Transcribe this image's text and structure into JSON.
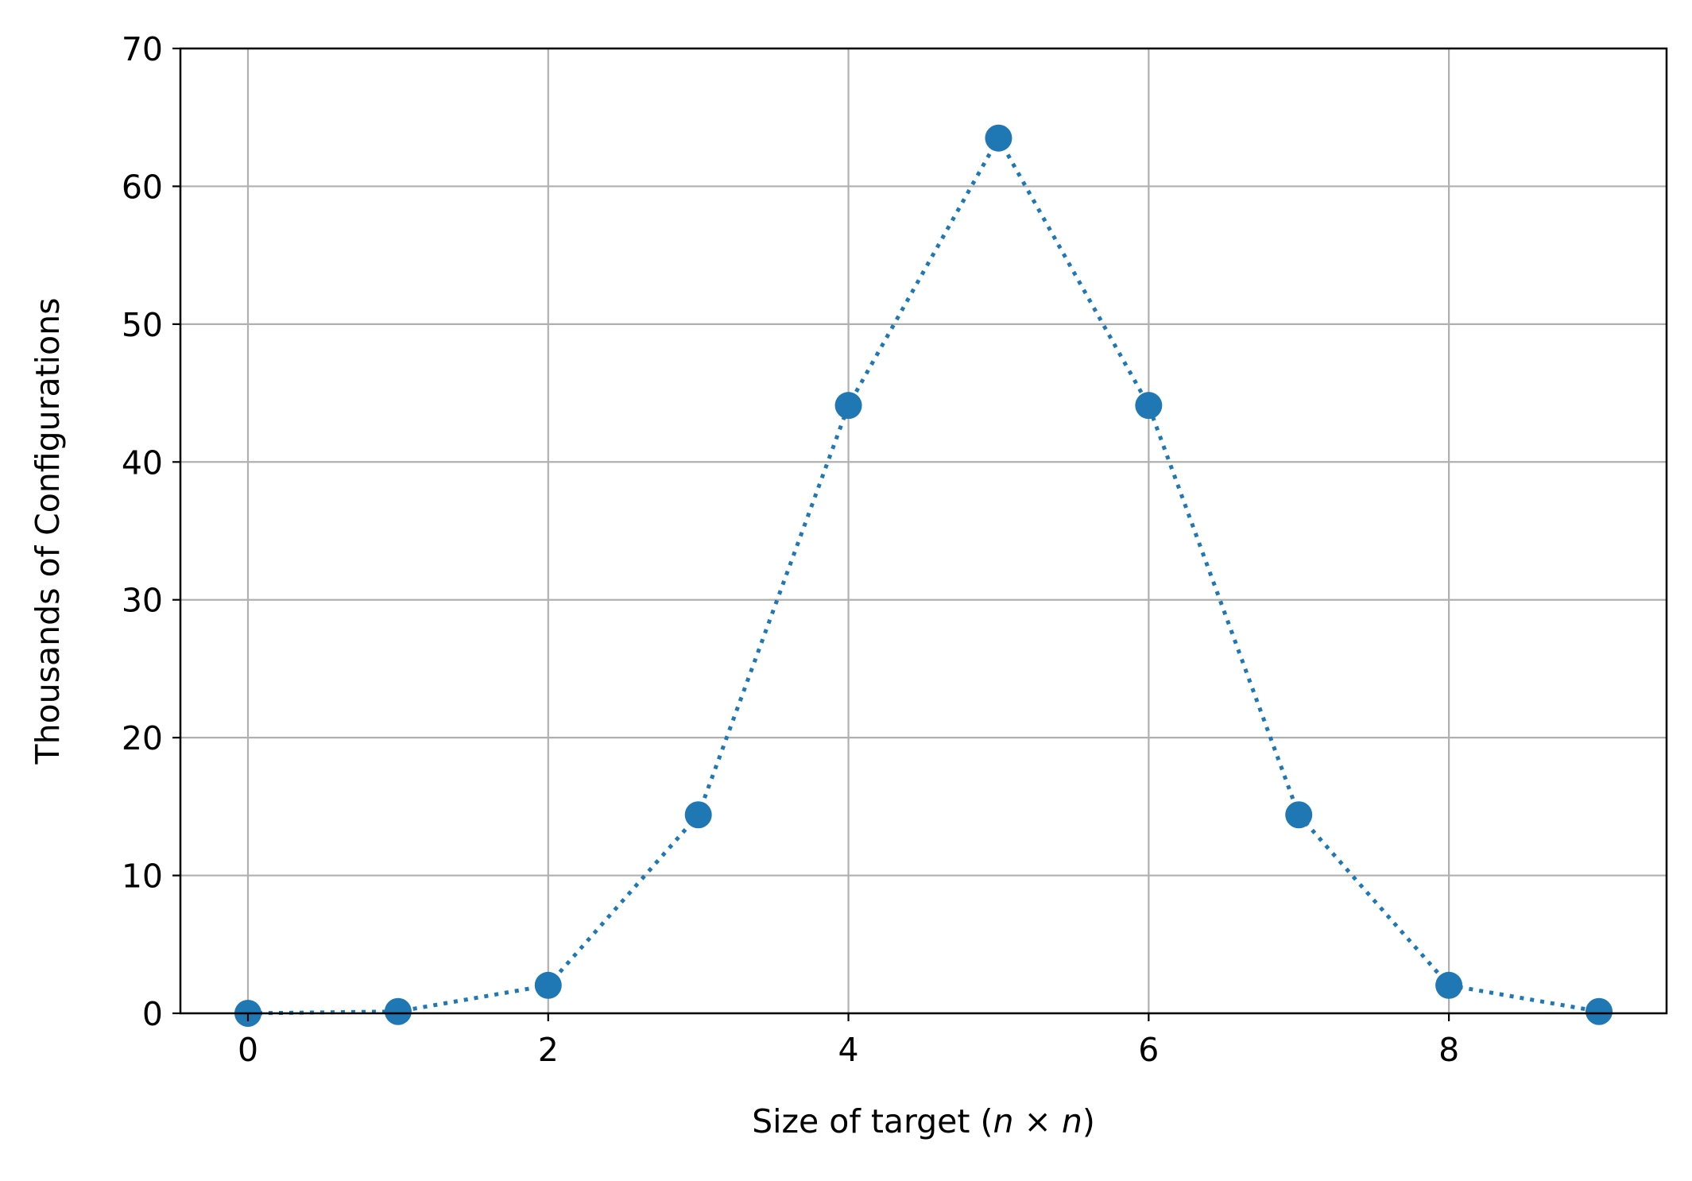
{
  "chart_data": {
    "type": "line",
    "title": "",
    "xlabel": "Size of target (",
    "xlabel_math": "n × n",
    "xlabel_close": ")",
    "ylabel": "Thousands of Configurations",
    "xlim": [
      -0.45,
      9.45
    ],
    "ylim": [
      0,
      70
    ],
    "xticks": [
      0,
      2,
      4,
      6,
      8
    ],
    "yticks": [
      0,
      10,
      20,
      30,
      40,
      50,
      60,
      70
    ],
    "grid": true,
    "legend": "none",
    "series": [
      {
        "x": [
          0,
          1,
          2,
          3,
          4,
          5,
          6,
          7,
          8,
          9
        ],
        "values": [
          0.001,
          0.13,
          2.03,
          14.4,
          44.1,
          63.5,
          44.1,
          14.4,
          2.03,
          0.13
        ],
        "color": "#1f77b4",
        "line_style": "dotted",
        "marker": "circle"
      }
    ]
  },
  "colors": {
    "series": "#1f77b4",
    "grid": "#b0b0b0",
    "axes": "#000000",
    "background": "#ffffff"
  }
}
